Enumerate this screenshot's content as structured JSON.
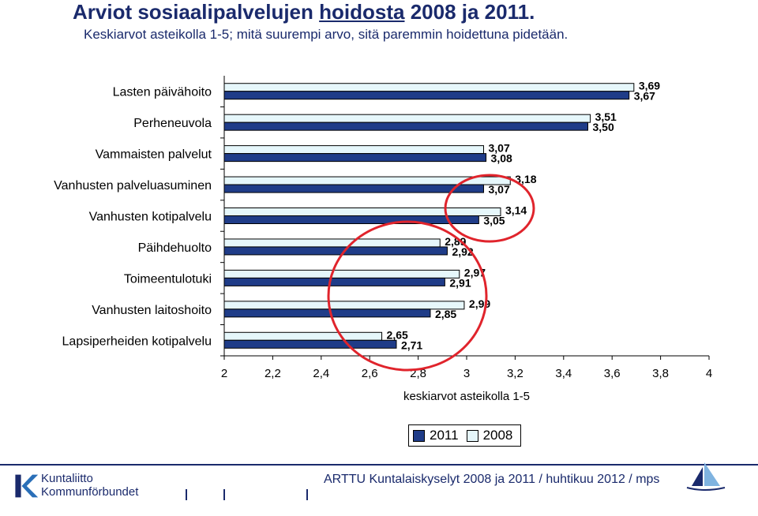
{
  "title": {
    "part1": "Arviot sosiaalipalvelujen ",
    "part2": "hoidosta",
    "part3": " 2008 ja 2011."
  },
  "subtitle": "Keskiarvot asteikolla 1-5; mitä suurempi arvo, sitä paremmin hoidettuna pidetään.",
  "colors": {
    "navy": "#1a2a6c",
    "bar2011": "#1f3c88",
    "bar2008": "#e6f7fb",
    "circle": "#e0242c"
  },
  "chart_data": {
    "type": "bar",
    "orientation": "horizontal",
    "categories": [
      "Lasten päivähoito",
      "Perheneuvola",
      "Vammaisten palvelut",
      "Vanhusten palveluasuminen",
      "Vanhusten kotipalvelu",
      "Päihdehuolto",
      "Toimeentulotuki",
      "Vanhusten laitoshoito",
      "Lapsiperheiden kotipalvelu"
    ],
    "series": [
      {
        "name": "2011",
        "values": [
          3.67,
          3.5,
          3.08,
          3.07,
          3.05,
          2.92,
          2.91,
          2.85,
          2.71
        ],
        "labels": [
          "3,67",
          "3,50",
          "3,08",
          "3,07",
          "3,05",
          "2,92",
          "2,91",
          "2,85",
          "2,71"
        ]
      },
      {
        "name": "2008",
        "values": [
          3.69,
          3.51,
          3.07,
          3.18,
          3.14,
          2.89,
          2.97,
          2.99,
          2.65
        ],
        "labels": [
          "3,69",
          "3,51",
          "3,07",
          "3,18",
          "3,14",
          "2,89",
          "2,97",
          "2,99",
          "2,65"
        ]
      }
    ],
    "xlim": [
      2,
      4
    ],
    "xticks": [
      "2",
      "2,2",
      "2,4",
      "2,6",
      "2,8",
      "3",
      "3,2",
      "3,4",
      "3,6",
      "3,8",
      "4"
    ],
    "xlabel": "keskiarvot asteikolla 1-5",
    "legend_position": "bottom"
  },
  "legend": {
    "s2011": "2011",
    "s2008": "2008"
  },
  "footer": {
    "logo_line1": "Kuntaliitto",
    "logo_line2": "Kommunförbundet",
    "text": "ARTTU Kuntalaiskyselyt 2008 ja 2011 / huhtikuu 2012 / mps"
  }
}
